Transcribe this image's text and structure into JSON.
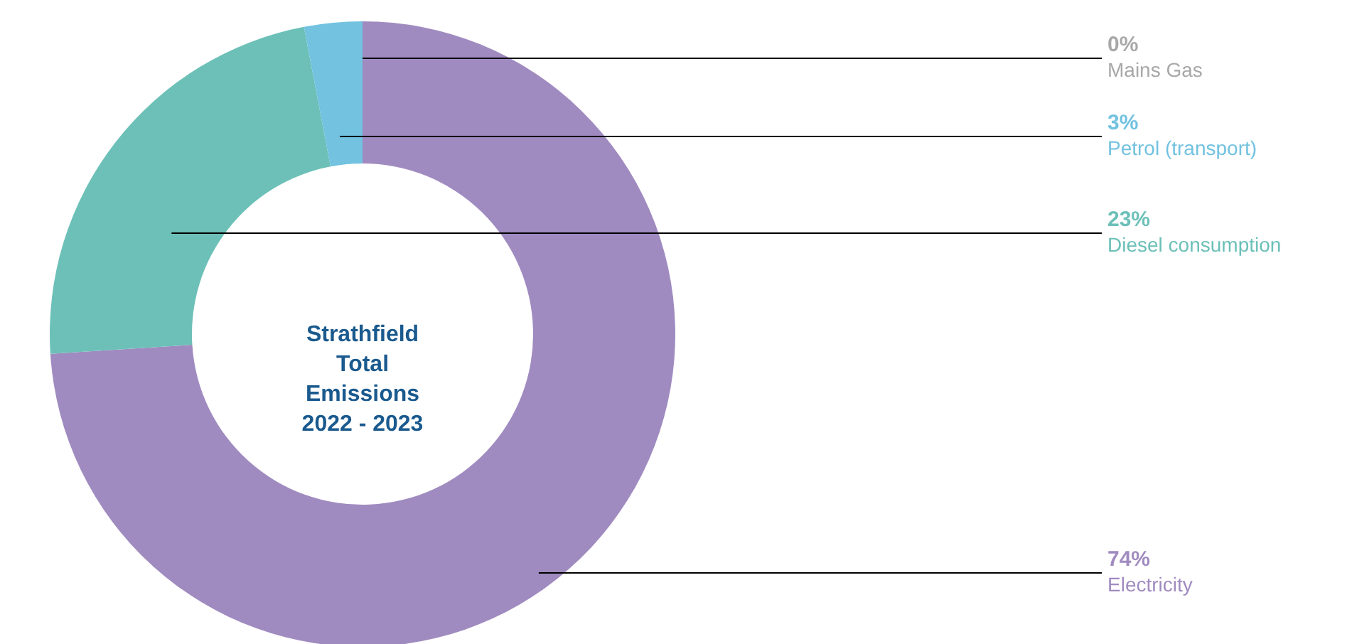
{
  "chart_data": {
    "type": "donut",
    "title": "Strathfield Total Emissions 2022 - 2023",
    "categories": [
      "Electricity",
      "Diesel consumption",
      "Petrol (transport)",
      "Mains Gas"
    ],
    "values": [
      74,
      23,
      3,
      0
    ],
    "colors": [
      "#a08bc0",
      "#6cc0b8",
      "#72c2e0",
      "#a8a8a8"
    ],
    "value_labels": [
      "74%",
      "23%",
      "3%",
      "0%"
    ]
  }
}
